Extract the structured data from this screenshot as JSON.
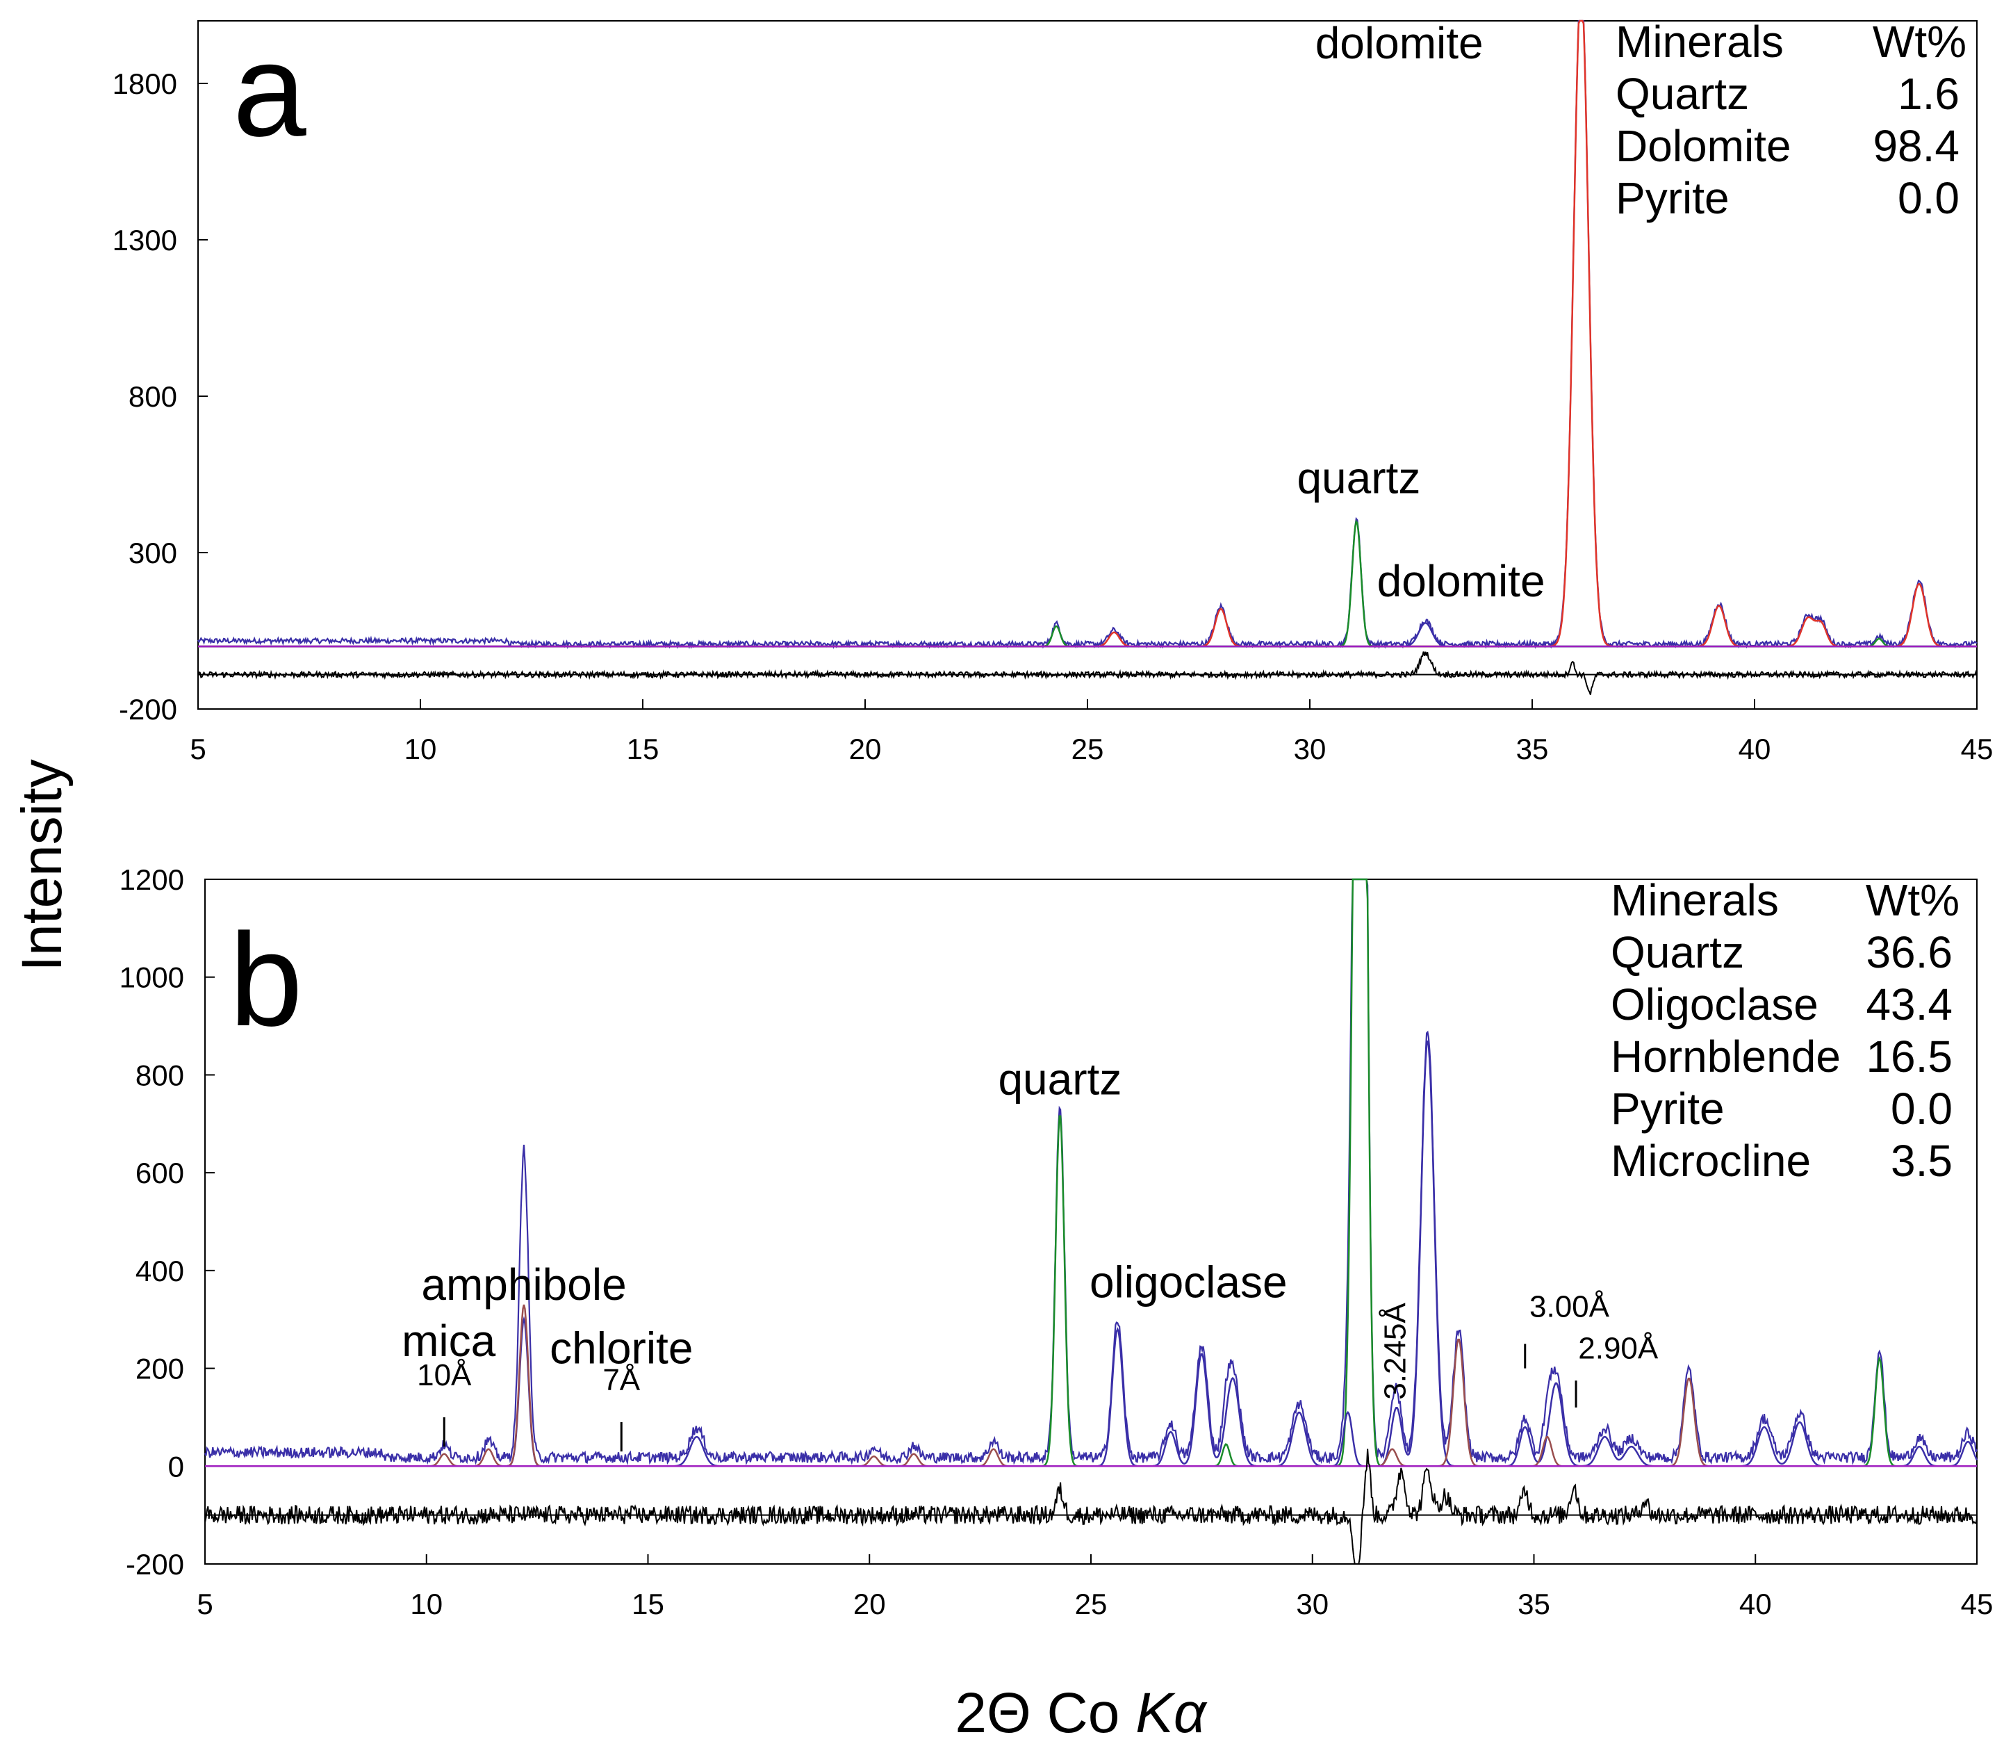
{
  "figure": {
    "ylabel": "Intensity",
    "xlabel_prefix": "2Θ Co ",
    "xlabel_italic": "Kα"
  },
  "colors": {
    "observed": "#3a2fa8",
    "calculated": "#e0342a",
    "quartz": "#1a8c2a",
    "dolomite": "#e0342a",
    "oligoclase": "#3a2fa8",
    "hornblende": "#9a4e4e",
    "baseline": "#a020c0",
    "difference": "#000000"
  },
  "chart_data": [
    {
      "panel": "a",
      "type": "line",
      "xlim": [
        5,
        45
      ],
      "ylim": [
        -200,
        2000
      ],
      "xticks": [
        5,
        10,
        15,
        20,
        25,
        30,
        35,
        40,
        45
      ],
      "yticks": [
        -200,
        300,
        800,
        1300,
        1800
      ],
      "baseline_level": 0,
      "difference_offset": -90,
      "series": [
        {
          "name": "quartz",
          "color_key": "quartz",
          "peaks": [
            [
              24.3,
              65,
              0.09
            ],
            [
              31.05,
              400,
              0.1
            ],
            [
              42.8,
              25,
              0.08
            ]
          ]
        },
        {
          "name": "dolomite",
          "color_key": "dolomite",
          "peaks": [
            [
              25.6,
              45,
              0.12
            ],
            [
              28.0,
              120,
              0.13
            ],
            [
              36.1,
              2100,
              0.17
            ],
            [
              39.2,
              130,
              0.14
            ],
            [
              41.2,
              90,
              0.14
            ],
            [
              41.5,
              70,
              0.12
            ],
            [
              43.7,
              200,
              0.15
            ]
          ]
        },
        {
          "name": "pyrite",
          "color_key": "observed",
          "peaks": [
            [
              32.6,
              75,
              0.15
            ]
          ]
        }
      ],
      "difference_features": [
        [
          32.6,
          70,
          0.12
        ],
        [
          35.9,
          40,
          0.05
        ],
        [
          36.3,
          -60,
          0.06
        ]
      ],
      "annotations": [
        {
          "text": "dolomite",
          "x": 33.9,
          "y": 1880,
          "anchor": "end"
        },
        {
          "text": "quartz",
          "x": 31.1,
          "y": 490,
          "anchor": "middle"
        },
        {
          "text": "dolomite",
          "x": 33.4,
          "y": 160,
          "anchor": "middle"
        }
      ],
      "legend": {
        "header": [
          "Minerals",
          "Wt%"
        ],
        "rows": [
          [
            "Quartz",
            "1.6"
          ],
          [
            "Dolomite",
            "98.4"
          ],
          [
            "Pyrite",
            "0.0"
          ]
        ]
      }
    },
    {
      "panel": "b",
      "type": "line",
      "xlim": [
        5,
        45
      ],
      "ylim": [
        -200,
        1200
      ],
      "xticks": [
        5,
        10,
        15,
        20,
        25,
        30,
        35,
        40,
        45
      ],
      "yticks": [
        -200,
        0,
        200,
        400,
        600,
        800,
        1000,
        1200
      ],
      "baseline_level": 0,
      "difference_offset": -100,
      "series": [
        {
          "name": "quartz",
          "color_key": "quartz",
          "peaks": [
            [
              24.3,
              720,
              0.1
            ],
            [
              31.0,
              1600,
              0.11
            ],
            [
              31.15,
              1600,
              0.1
            ],
            [
              28.05,
              45,
              0.08
            ],
            [
              42.8,
              220,
              0.1
            ]
          ]
        },
        {
          "name": "oligoclase",
          "color_key": "oligoclase",
          "peaks": [
            [
              12.2,
              300,
              0.1
            ],
            [
              16.1,
              60,
              0.15
            ],
            [
              25.6,
              280,
              0.12
            ],
            [
              26.8,
              70,
              0.12
            ],
            [
              27.5,
              230,
              0.13
            ],
            [
              28.2,
              180,
              0.15
            ],
            [
              29.7,
              110,
              0.15
            ],
            [
              30.8,
              110,
              0.1
            ],
            [
              31.9,
              120,
              0.12
            ],
            [
              32.6,
              870,
              0.15
            ],
            [
              34.8,
              80,
              0.12
            ],
            [
              35.5,
              170,
              0.15
            ],
            [
              36.6,
              60,
              0.15
            ],
            [
              37.2,
              40,
              0.15
            ],
            [
              40.2,
              80,
              0.15
            ],
            [
              41.0,
              90,
              0.15
            ],
            [
              43.7,
              40,
              0.12
            ],
            [
              44.8,
              50,
              0.12
            ]
          ]
        },
        {
          "name": "hornblende",
          "color_key": "hornblende",
          "peaks": [
            [
              10.4,
              25,
              0.1
            ],
            [
              11.4,
              35,
              0.1
            ],
            [
              12.2,
              330,
              0.1
            ],
            [
              20.1,
              20,
              0.1
            ],
            [
              21.0,
              25,
              0.1
            ],
            [
              22.8,
              35,
              0.1
            ],
            [
              31.8,
              35,
              0.1
            ],
            [
              33.3,
              260,
              0.12
            ],
            [
              35.3,
              60,
              0.1
            ],
            [
              38.5,
              180,
              0.12
            ]
          ]
        }
      ],
      "difference_features": [
        [
          24.3,
          50,
          0.08
        ],
        [
          31.0,
          -160,
          0.06
        ],
        [
          31.25,
          120,
          0.06
        ],
        [
          32.0,
          90,
          0.1
        ],
        [
          32.6,
          90,
          0.1
        ],
        [
          33.0,
          40,
          0.1
        ],
        [
          34.8,
          50,
          0.08
        ],
        [
          35.9,
          60,
          0.08
        ],
        [
          37.5,
          30,
          0.08
        ]
      ],
      "annotations": [
        {
          "text": "amphibole",
          "x": 12.2,
          "y": 340,
          "anchor": "middle",
          "size": "big"
        },
        {
          "text": "mica",
          "x": 10.5,
          "y": 225,
          "anchor": "middle",
          "size": "big"
        },
        {
          "text": "chlorite",
          "x": 14.4,
          "y": 210,
          "anchor": "middle",
          "size": "big"
        },
        {
          "text": "quartz",
          "x": 24.3,
          "y": 760,
          "anchor": "middle",
          "size": "big"
        },
        {
          "text": "oligoclase",
          "x": 27.2,
          "y": 345,
          "anchor": "middle",
          "size": "big"
        },
        {
          "text": "10Å",
          "x": 10.4,
          "y": 165,
          "anchor": "middle",
          "size": "small"
        },
        {
          "text": "7Å",
          "x": 14.4,
          "y": 155,
          "anchor": "middle",
          "size": "small"
        },
        {
          "text": "3.00Å",
          "x": 35.8,
          "y": 305,
          "anchor": "middle",
          "size": "small"
        },
        {
          "text": "2.90Å",
          "x": 36.0,
          "y": 220,
          "anchor": "start",
          "size": "small"
        }
      ],
      "rotated_label": {
        "text": "3.245Å",
        "x": 32.1,
        "y": 235
      },
      "ticks_marks": [
        [
          10.4,
          100,
          40
        ],
        [
          14.4,
          90,
          30
        ],
        [
          34.8,
          250,
          200
        ],
        [
          35.95,
          175,
          120
        ]
      ],
      "legend": {
        "header": [
          "Minerals",
          "Wt%"
        ],
        "rows": [
          [
            "Quartz",
            "36.6"
          ],
          [
            "Oligoclase",
            "43.4"
          ],
          [
            "Hornblende",
            "16.5"
          ],
          [
            "Pyrite",
            "0.0"
          ],
          [
            "Microcline",
            "3.5"
          ]
        ]
      }
    }
  ]
}
